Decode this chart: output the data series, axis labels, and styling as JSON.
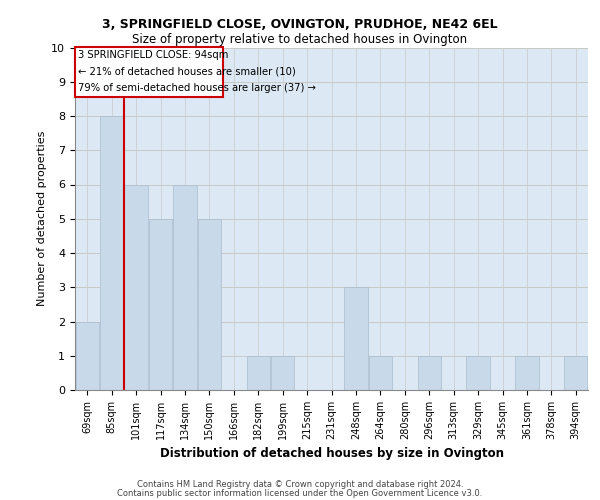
{
  "title1": "3, SPRINGFIELD CLOSE, OVINGTON, PRUDHOE, NE42 6EL",
  "title2": "Size of property relative to detached houses in Ovington",
  "xlabel": "Distribution of detached houses by size in Ovington",
  "ylabel": "Number of detached properties",
  "categories": [
    "69sqm",
    "85sqm",
    "101sqm",
    "117sqm",
    "134sqm",
    "150sqm",
    "166sqm",
    "182sqm",
    "199sqm",
    "215sqm",
    "231sqm",
    "248sqm",
    "264sqm",
    "280sqm",
    "296sqm",
    "313sqm",
    "329sqm",
    "345sqm",
    "361sqm",
    "378sqm",
    "394sqm"
  ],
  "values": [
    2,
    8,
    6,
    5,
    6,
    5,
    0,
    1,
    1,
    0,
    0,
    3,
    1,
    0,
    1,
    0,
    1,
    0,
    1,
    0,
    1
  ],
  "bar_color": "#c8d9ea",
  "bar_edge_color": "#aabccc",
  "grid_color": "#c8c8c8",
  "background_color": "#dce9f5",
  "annotation_box_color": "#cc0000",
  "subject_line_color": "#cc0000",
  "annotation_text_line1": "3 SPRINGFIELD CLOSE: 94sqm",
  "annotation_text_line2": "← 21% of detached houses are smaller (10)",
  "annotation_text_line3": "79% of semi-detached houses are larger (37) →",
  "footer1": "Contains HM Land Registry data © Crown copyright and database right 2024.",
  "footer2": "Contains public sector information licensed under the Open Government Licence v3.0.",
  "ylim": [
    0,
    10
  ],
  "yticks": [
    0,
    1,
    2,
    3,
    4,
    5,
    6,
    7,
    8,
    9,
    10
  ]
}
